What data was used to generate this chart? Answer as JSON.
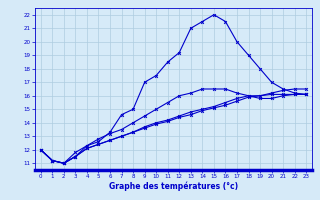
{
  "x": [
    0,
    1,
    2,
    3,
    4,
    5,
    6,
    7,
    8,
    9,
    10,
    11,
    12,
    13,
    14,
    15,
    16,
    17,
    18,
    19,
    20,
    21,
    22,
    23
  ],
  "line1": [
    12.0,
    11.2,
    11.0,
    11.5,
    12.3,
    12.6,
    13.3,
    14.6,
    15.0,
    17.0,
    17.5,
    18.5,
    19.2,
    21.0,
    21.5,
    22.0,
    21.5,
    20.0,
    19.0,
    18.0,
    17.0,
    16.5,
    16.2,
    16.1
  ],
  "line2": [
    12.0,
    11.2,
    11.0,
    11.8,
    12.3,
    12.8,
    13.2,
    13.5,
    14.0,
    14.5,
    15.0,
    15.5,
    16.0,
    16.2,
    16.5,
    16.5,
    16.5,
    16.2,
    16.0,
    15.8,
    15.8,
    16.0,
    16.1,
    16.1
  ],
  "line3": [
    12.0,
    11.2,
    11.0,
    11.5,
    12.1,
    12.4,
    12.7,
    13.0,
    13.3,
    13.7,
    14.0,
    14.2,
    14.5,
    14.8,
    15.0,
    15.2,
    15.5,
    15.8,
    16.0,
    16.0,
    16.1,
    16.1,
    16.1,
    16.1
  ],
  "line4": [
    12.0,
    11.2,
    11.0,
    11.5,
    12.1,
    12.4,
    12.7,
    13.0,
    13.3,
    13.6,
    13.9,
    14.1,
    14.4,
    14.6,
    14.9,
    15.1,
    15.3,
    15.6,
    15.9,
    16.0,
    16.2,
    16.4,
    16.5,
    16.5
  ],
  "bg_color": "#d6eaf8",
  "grid_color": "#aecde0",
  "line_color": "#0000cc",
  "xlabel": "Graphe des températures (°c)",
  "ylim": [
    10.5,
    22.5
  ],
  "yticks": [
    11,
    12,
    13,
    14,
    15,
    16,
    17,
    18,
    19,
    20,
    21,
    22
  ],
  "xticks": [
    0,
    1,
    2,
    3,
    4,
    5,
    6,
    7,
    8,
    9,
    10,
    11,
    12,
    13,
    14,
    15,
    16,
    17,
    18,
    19,
    20,
    21,
    22,
    23
  ],
  "marker_size": 2.0,
  "line_width": 0.8,
  "tick_fontsize": 4.0,
  "xlabel_fontsize": 5.5
}
